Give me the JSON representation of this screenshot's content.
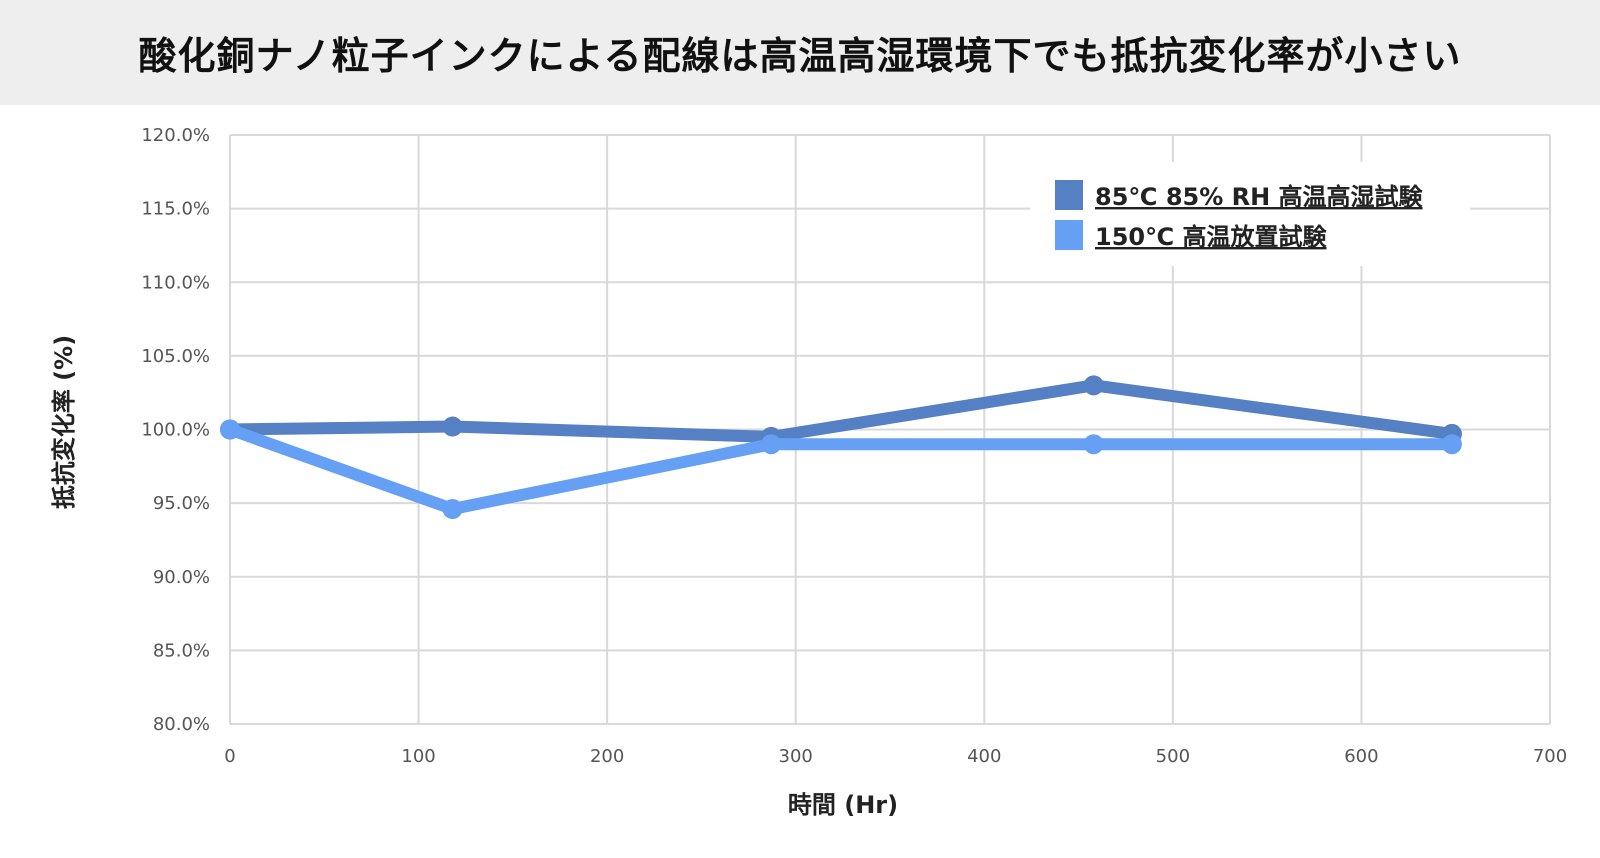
{
  "header": {
    "title": "酸化銅ナノ粒子インクによる配線は高温高湿環境下でも抵抗変化率が小さい"
  },
  "chart_data": {
    "type": "line",
    "title": "酸化銅ナノ粒子インクによる配線は高温高湿環境下でも抵抗変化率が小さい",
    "xlabel": "時間 (Hr)",
    "ylabel": "抵抗変化率 (%)",
    "xlim": [
      0,
      700
    ],
    "ylim": [
      80,
      120
    ],
    "xticks": [
      0,
      100,
      200,
      300,
      400,
      500,
      600,
      700
    ],
    "yticks": [
      80,
      85,
      90,
      95,
      100,
      105,
      110,
      115,
      120
    ],
    "ytick_labels": [
      "80.0%",
      "85.0%",
      "90.0%",
      "95.0%",
      "100.0%",
      "105.0%",
      "110.0%",
      "115.0%",
      "120.0%"
    ],
    "grid": true,
    "legend_position": "top-right",
    "series": [
      {
        "name": "85℃ 85% RH 高温高湿試験",
        "color": "#5580c4",
        "x": [
          0,
          118,
          287,
          458,
          648
        ],
        "y": [
          100.0,
          100.2,
          99.5,
          103.0,
          99.7
        ]
      },
      {
        "name": "150℃ 高温放置試験",
        "color": "#66a0f5",
        "x": [
          0,
          118,
          287,
          458,
          648
        ],
        "y": [
          100.0,
          94.6,
          99.0,
          99.0,
          99.0
        ]
      }
    ]
  }
}
